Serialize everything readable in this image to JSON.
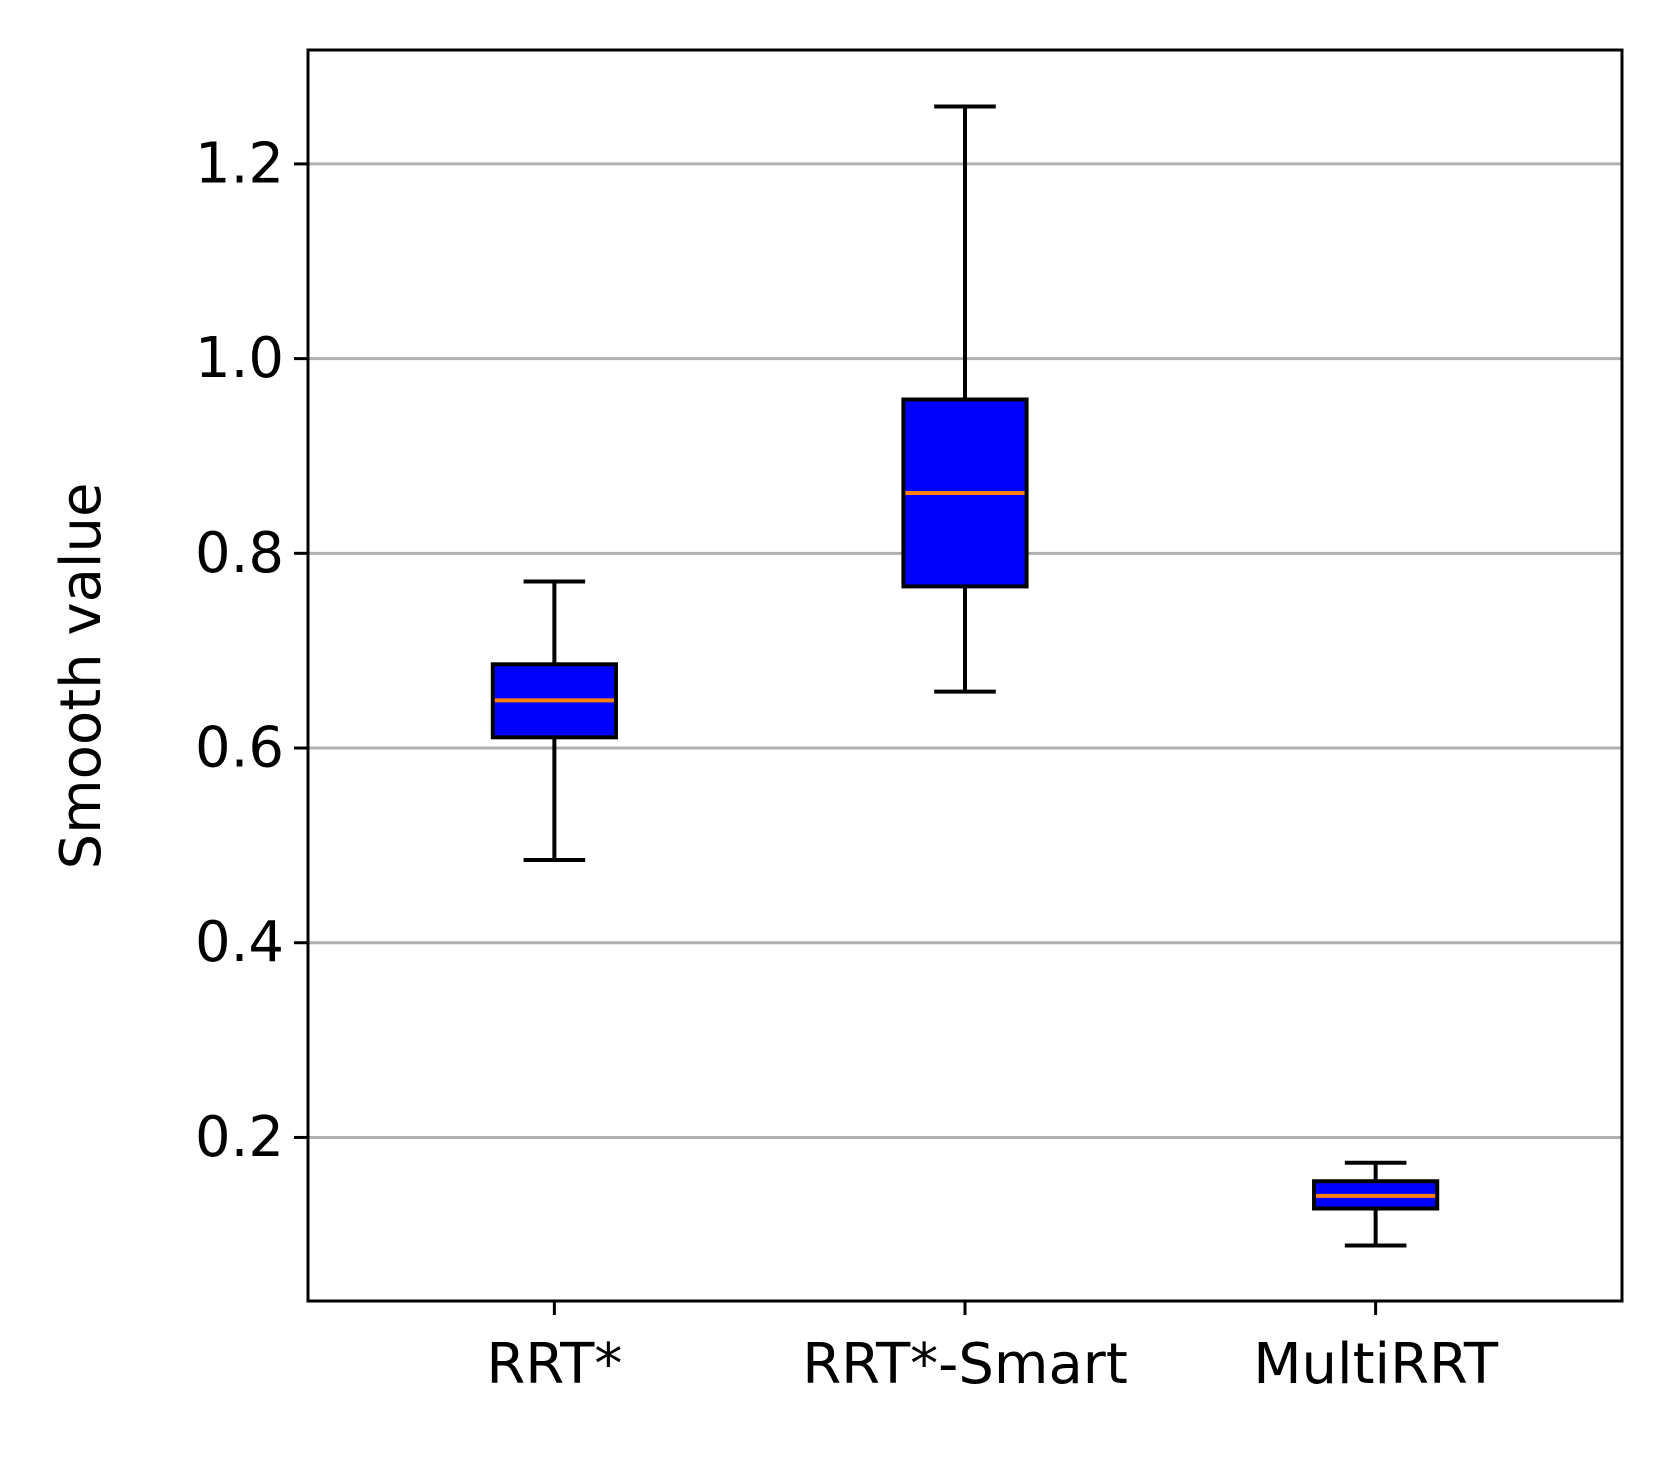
{
  "chart_data": {
    "type": "box",
    "title": "",
    "xlabel": "",
    "ylabel": "Smooth value",
    "categories": [
      "RRT*",
      "RRT*-Smart",
      "MultiRRT"
    ],
    "boxes": [
      {
        "category": "RRT*",
        "whisker_low": 0.485,
        "q1": 0.611,
        "median": 0.649,
        "q3": 0.686,
        "whisker_high": 0.771
      },
      {
        "category": "RRT*-Smart",
        "whisker_low": 0.658,
        "q1": 0.766,
        "median": 0.862,
        "q3": 0.958,
        "whisker_high": 1.259
      },
      {
        "category": "MultiRRT",
        "whisker_low": 0.089,
        "q1": 0.127,
        "median": 0.14,
        "q3": 0.155,
        "whisker_high": 0.174
      }
    ],
    "ylim": [
      0.032,
      1.317
    ],
    "yticks": [
      "0.2",
      "0.4",
      "0.6",
      "0.8",
      "1.0",
      "1.2"
    ],
    "grid": "y",
    "legend": "none",
    "colors": {
      "box_fill": "#0000ff",
      "box_edge": "#000000",
      "median": "#ff7f0e",
      "grid": "#b0b0b0"
    }
  }
}
